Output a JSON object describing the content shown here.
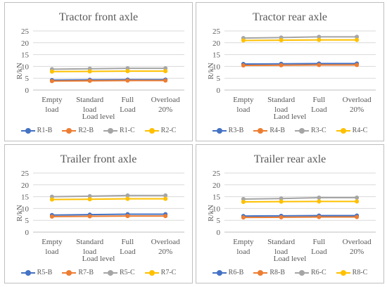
{
  "chart_data": [
    {
      "type": "line",
      "title": "Tractor front axle",
      "ylabel": "R/kN",
      "xlabel": "Load level",
      "categories": [
        "Empty load",
        "Standard load",
        "Full Load",
        "Overload 20%"
      ],
      "yticks": [
        "0",
        "5",
        "10",
        "15",
        "20",
        "25"
      ],
      "ylim": [
        0,
        25
      ],
      "grid": true,
      "legend": "bottom",
      "series": [
        {
          "name": "R1-B",
          "color": "#4472C4",
          "values": [
            4.2,
            4.3,
            4.4,
            4.4
          ]
        },
        {
          "name": "R2-B",
          "color": "#ED7D31",
          "values": [
            3.8,
            3.9,
            4.0,
            4.0
          ]
        },
        {
          "name": "R1-C",
          "color": "#A5A5A5",
          "values": [
            8.8,
            9.0,
            9.2,
            9.2
          ]
        },
        {
          "name": "R2-C",
          "color": "#FFC000",
          "values": [
            7.8,
            7.9,
            8.0,
            8.0
          ]
        }
      ]
    },
    {
      "type": "line",
      "title": "Tractor rear axle",
      "ylabel": "R/kN",
      "xlabel": "Laod level",
      "categories": [
        "Empty load",
        "Standard load",
        "Full Load",
        "Overload 20%"
      ],
      "yticks": [
        "0",
        "5",
        "10",
        "15",
        "20",
        "25"
      ],
      "ylim": [
        0,
        25
      ],
      "grid": true,
      "legend": "bottom",
      "series": [
        {
          "name": "R3-B",
          "color": "#4472C4",
          "values": [
            11.0,
            11.1,
            11.2,
            11.2
          ]
        },
        {
          "name": "R4-B",
          "color": "#ED7D31",
          "values": [
            10.4,
            10.5,
            10.6,
            10.6
          ]
        },
        {
          "name": "R3-C",
          "color": "#A5A5A5",
          "values": [
            22.0,
            22.2,
            22.5,
            22.5
          ]
        },
        {
          "name": "R4-C",
          "color": "#FFC000",
          "values": [
            21.0,
            21.1,
            21.2,
            21.2
          ]
        }
      ]
    },
    {
      "type": "line",
      "title": "Trailer front axle",
      "ylabel": "R/kN",
      "xlabel": "Load level",
      "categories": [
        "Empty load",
        "Standard load",
        "Full Load",
        "Overload 20%"
      ],
      "yticks": [
        "0",
        "5",
        "10",
        "15",
        "20",
        "25"
      ],
      "ylim": [
        0,
        25
      ],
      "grid": true,
      "legend": "bottom",
      "series": [
        {
          "name": "R5-B",
          "color": "#4472C4",
          "values": [
            7.2,
            7.4,
            7.6,
            7.6
          ]
        },
        {
          "name": "R7-B",
          "color": "#ED7D31",
          "values": [
            6.6,
            6.7,
            6.8,
            6.8
          ]
        },
        {
          "name": "R5-C",
          "color": "#A5A5A5",
          "values": [
            15.0,
            15.2,
            15.5,
            15.5
          ]
        },
        {
          "name": "R7-C",
          "color": "#FFC000",
          "values": [
            13.8,
            13.9,
            14.1,
            14.1
          ]
        }
      ]
    },
    {
      "type": "line",
      "title": "Trailer rear axle",
      "ylabel": "R/kN",
      "xlabel": "Load level",
      "categories": [
        "Empty load",
        "Standard load",
        "Full Load",
        "Overload 20%"
      ],
      "yticks": [
        "0",
        "5",
        "10",
        "15",
        "20",
        "25"
      ],
      "ylim": [
        0,
        25
      ],
      "grid": true,
      "legend": "bottom",
      "series": [
        {
          "name": "R6-B",
          "color": "#4472C4",
          "values": [
            6.8,
            6.9,
            7.0,
            7.0
          ]
        },
        {
          "name": "R8-B",
          "color": "#ED7D31",
          "values": [
            6.2,
            6.3,
            6.4,
            6.4
          ]
        },
        {
          "name": "R6-C",
          "color": "#A5A5A5",
          "values": [
            14.0,
            14.2,
            14.6,
            14.6
          ]
        },
        {
          "name": "R8-C",
          "color": "#FFC000",
          "values": [
            12.8,
            12.9,
            13.0,
            13.0
          ]
        }
      ]
    }
  ]
}
